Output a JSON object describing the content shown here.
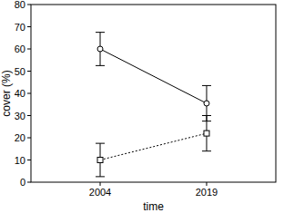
{
  "chart_data": {
    "type": "line",
    "x_label": "time",
    "y_label": "cover (%)",
    "categories": [
      "2004",
      "2019"
    ],
    "ylim": [
      0,
      80
    ],
    "yticks": [
      0,
      10,
      20,
      30,
      40,
      50,
      60,
      70,
      80
    ],
    "grid": false,
    "series": [
      {
        "color": "#000000",
        "marker": "circle",
        "line_style": "solid",
        "values": [
          60,
          35.5
        ],
        "errors": [
          7.5,
          8
        ]
      },
      {
        "color": "#000000",
        "marker": "square",
        "line_style": "dotted",
        "values": [
          10,
          22
        ],
        "errors": [
          7.5,
          8
        ]
      }
    ]
  }
}
